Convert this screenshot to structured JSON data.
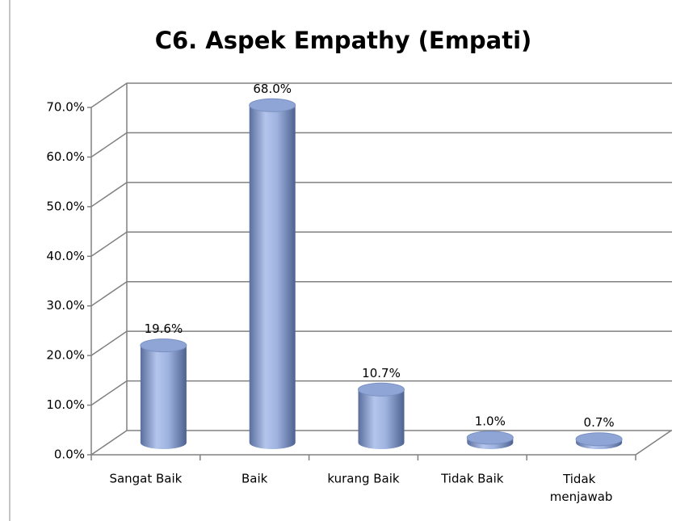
{
  "chart_data": {
    "type": "bar",
    "title": "C6. Aspek Empathy (Empati)",
    "categories": [
      "Sangat Baik",
      "Baik",
      "kurang Baik",
      "Tidak Baik",
      "Tidak menjawab"
    ],
    "values": [
      19.6,
      68.0,
      10.7,
      1.0,
      0.7
    ],
    "value_labels": [
      "19.6%",
      "68.0%",
      "10.7%",
      "1.0%",
      "0.7%"
    ],
    "color": "#8fa5d6",
    "ylim": [
      0,
      70
    ],
    "yticks": [
      {
        "value": 0,
        "label": "0.0%"
      },
      {
        "value": 10,
        "label": "10.0%"
      },
      {
        "value": 20,
        "label": "20.0%"
      },
      {
        "value": 30,
        "label": "30.0%"
      },
      {
        "value": 40,
        "label": "40.0%"
      },
      {
        "value": 50,
        "label": "50.0%"
      },
      {
        "value": 60,
        "label": "60.0%"
      },
      {
        "value": 70,
        "label": "70.0%"
      }
    ],
    "grid": true
  }
}
